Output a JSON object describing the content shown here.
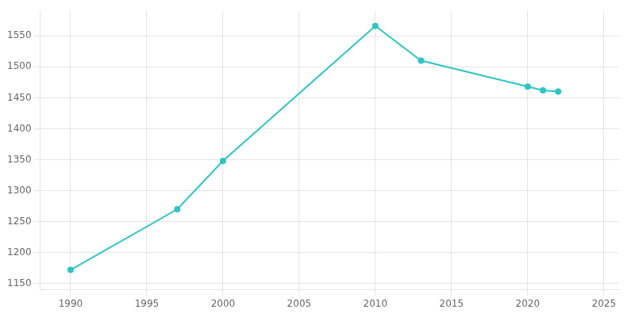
{
  "chart_data": {
    "type": "line",
    "x": [
      1990,
      1997,
      2000,
      2010,
      2013,
      2020,
      2021,
      2022
    ],
    "values": [
      1172,
      1270,
      1348,
      1566,
      1510,
      1468,
      1462,
      1460
    ],
    "color": "#2EC4C4",
    "marker": "circle",
    "xlim": [
      1988,
      2026
    ],
    "ylim": [
      1140,
      1590
    ],
    "xticks": [
      1990,
      1995,
      2000,
      2005,
      2010,
      2015,
      2020,
      2025
    ],
    "yticks": [
      1150,
      1200,
      1250,
      1300,
      1350,
      1400,
      1450,
      1500,
      1550
    ],
    "grid": true
  }
}
